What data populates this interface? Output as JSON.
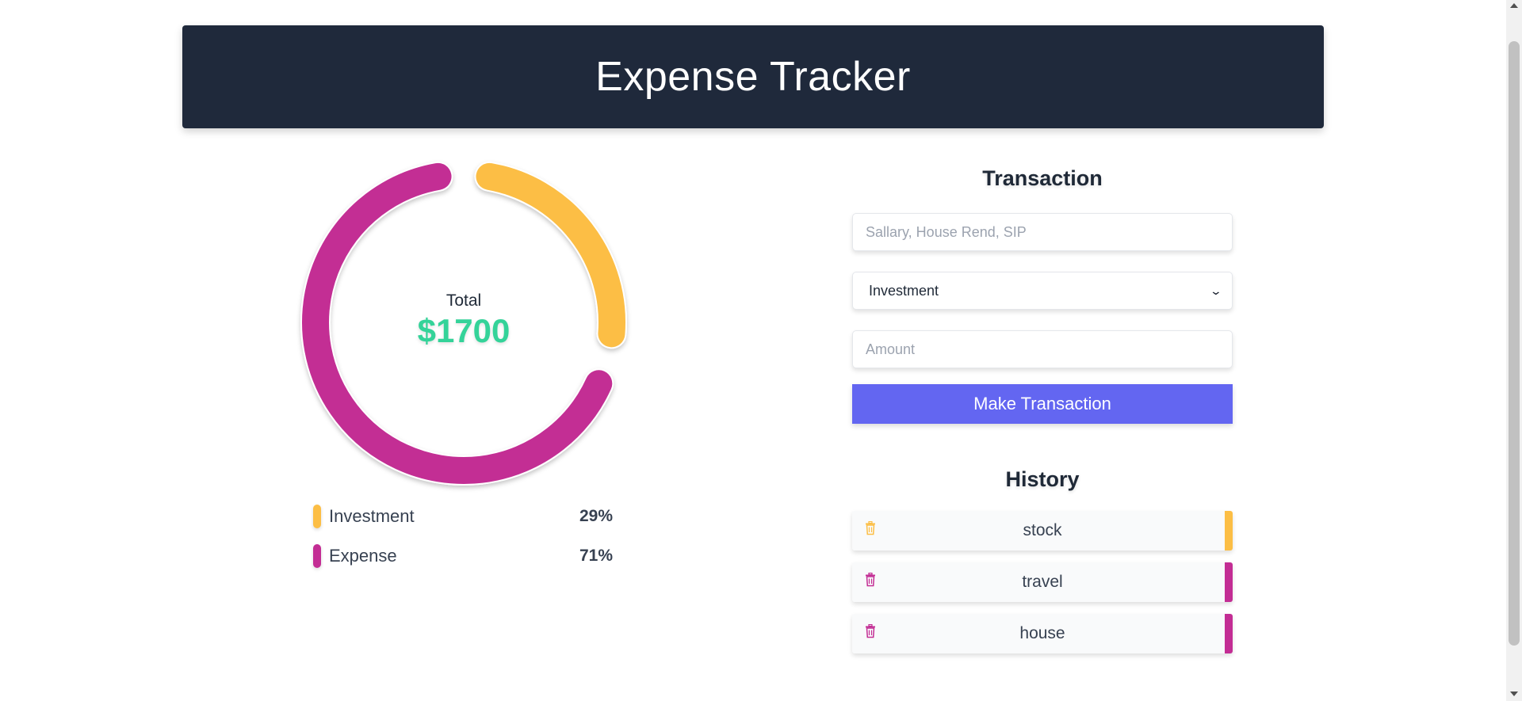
{
  "header": {
    "title": "Expense Tracker"
  },
  "summary": {
    "total_label": "Total",
    "total_value": "$1700"
  },
  "colors": {
    "investment": "#fcbe45",
    "expense": "#c32d94",
    "total": "#34d399",
    "button": "#6366f1"
  },
  "chart_data": {
    "type": "pie",
    "categories": [
      "Investment",
      "Expense"
    ],
    "values": [
      29,
      71
    ],
    "colors": [
      "#fcbe45",
      "#c32d94"
    ],
    "legend_position": "bottom"
  },
  "legend": [
    {
      "label": "Investment",
      "percent": "29%"
    },
    {
      "label": "Expense",
      "percent": "71%"
    }
  ],
  "transaction": {
    "title": "Transaction",
    "name_placeholder": "Sallary, House Rend, SIP",
    "type_selected": "Investment",
    "amount_placeholder": "Amount",
    "submit_label": "Make Transaction"
  },
  "history": {
    "title": "History",
    "items": [
      {
        "name": "stock",
        "type": "investment",
        "icon": "trash-icon"
      },
      {
        "name": "travel",
        "type": "expense",
        "icon": "trash-icon"
      },
      {
        "name": "house",
        "type": "expense",
        "icon": "trash-icon"
      }
    ]
  }
}
